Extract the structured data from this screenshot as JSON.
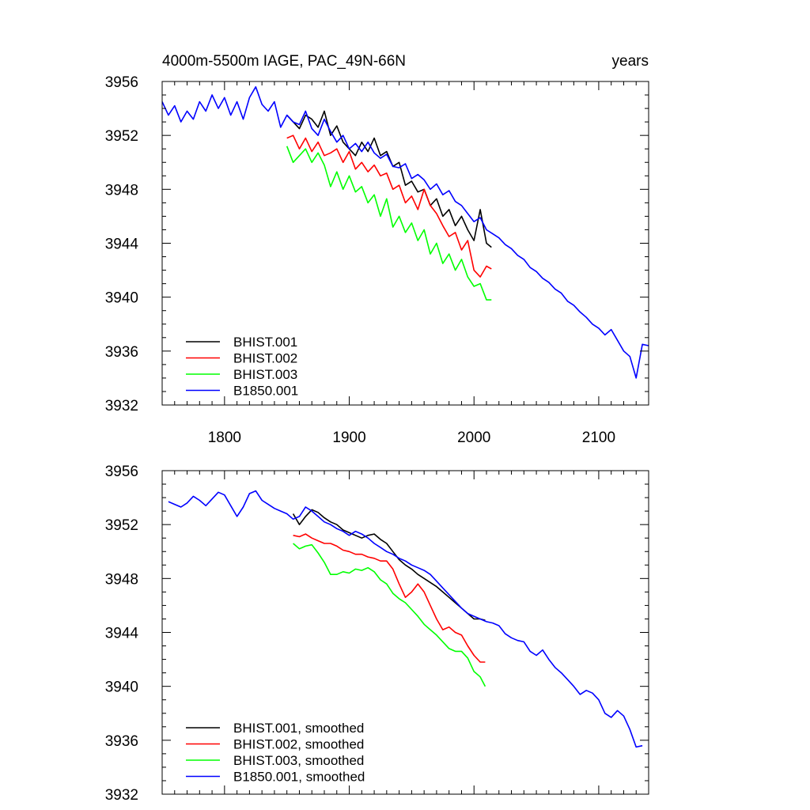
{
  "chart_data": [
    {
      "type": "line",
      "title": "4000m-5500m IAGE, PAC_49N-66N",
      "right_title": "years",
      "xlim": [
        1750,
        2140
      ],
      "ylim": [
        3932,
        3956
      ],
      "xticks": [
        1800,
        1900,
        2000,
        2100
      ],
      "xtick_labels": [
        "1800",
        "1900",
        "2000",
        "2100"
      ],
      "yticks": [
        3932,
        3936,
        3940,
        3944,
        3948,
        3952,
        3956
      ],
      "ytick_labels": [
        "3932",
        "3936",
        "3940",
        "3944",
        "3948",
        "3952",
        "3956"
      ],
      "legend_position": "bottom-left",
      "series": [
        {
          "name": "BHIST.001",
          "color": "#000000",
          "x": [
            1850,
            1855,
            1860,
            1865,
            1870,
            1875,
            1880,
            1885,
            1890,
            1895,
            1900,
            1905,
            1910,
            1915,
            1920,
            1925,
            1930,
            1935,
            1940,
            1945,
            1950,
            1955,
            1960,
            1965,
            1970,
            1975,
            1980,
            1985,
            1990,
            1995,
            2000,
            2005,
            2010,
            2014
          ],
          "y": [
            3953.5,
            3953.0,
            3952.5,
            3953.5,
            3953.2,
            3952.6,
            3953.8,
            3952.0,
            3952.7,
            3951.5,
            3951.0,
            3950.5,
            3951.5,
            3950.8,
            3951.8,
            3950.5,
            3950.8,
            3949.7,
            3950.0,
            3948.3,
            3948.6,
            3947.8,
            3948.0,
            3946.8,
            3947.3,
            3946.0,
            3946.5,
            3945.3,
            3946.0,
            3945.0,
            3944.2,
            3946.5,
            3944.0,
            3943.7
          ]
        },
        {
          "name": "BHIST.002",
          "color": "#ff0000",
          "x": [
            1850,
            1855,
            1860,
            1865,
            1870,
            1875,
            1880,
            1885,
            1890,
            1895,
            1900,
            1905,
            1910,
            1915,
            1920,
            1925,
            1930,
            1935,
            1940,
            1945,
            1950,
            1955,
            1960,
            1965,
            1970,
            1975,
            1980,
            1985,
            1990,
            1995,
            2000,
            2005,
            2010,
            2014
          ],
          "y": [
            3951.8,
            3952.0,
            3951.0,
            3951.8,
            3950.8,
            3951.5,
            3950.5,
            3950.7,
            3951.0,
            3950.0,
            3950.8,
            3949.5,
            3950.0,
            3949.3,
            3949.8,
            3949.0,
            3949.2,
            3948.0,
            3948.3,
            3947.0,
            3947.5,
            3946.5,
            3948.0,
            3946.8,
            3946.2,
            3945.3,
            3944.5,
            3944.8,
            3943.5,
            3944.2,
            3942.0,
            3941.5,
            3942.3,
            3942.1
          ]
        },
        {
          "name": "BHIST.003",
          "color": "#00ff00",
          "x": [
            1850,
            1855,
            1860,
            1865,
            1870,
            1875,
            1880,
            1885,
            1890,
            1895,
            1900,
            1905,
            1910,
            1915,
            1920,
            1925,
            1930,
            1935,
            1940,
            1945,
            1950,
            1955,
            1960,
            1965,
            1970,
            1975,
            1980,
            1985,
            1990,
            1995,
            2000,
            2005,
            2010,
            2014
          ],
          "y": [
            3951.2,
            3950.0,
            3950.5,
            3951.0,
            3950.0,
            3950.7,
            3949.8,
            3948.2,
            3949.3,
            3948.0,
            3949.0,
            3947.8,
            3948.2,
            3947.0,
            3947.6,
            3946.0,
            3947.3,
            3945.2,
            3946.0,
            3944.8,
            3945.5,
            3944.2,
            3945.0,
            3943.2,
            3944.0,
            3942.5,
            3943.2,
            3942.0,
            3942.8,
            3941.5,
            3940.8,
            3941.0,
            3939.8,
            3939.8
          ]
        },
        {
          "name": "B1850.001",
          "color": "#0000ff",
          "x": [
            1750,
            1755,
            1760,
            1765,
            1770,
            1775,
            1780,
            1785,
            1790,
            1795,
            1800,
            1805,
            1810,
            1815,
            1820,
            1825,
            1830,
            1835,
            1840,
            1845,
            1850,
            1855,
            1860,
            1865,
            1870,
            1875,
            1880,
            1885,
            1890,
            1895,
            1900,
            1905,
            1910,
            1915,
            1920,
            1925,
            1930,
            1935,
            1940,
            1945,
            1950,
            1955,
            1960,
            1965,
            1970,
            1975,
            1980,
            1985,
            1990,
            1995,
            2000,
            2005,
            2010,
            2015,
            2020,
            2025,
            2030,
            2035,
            2040,
            2045,
            2050,
            2055,
            2060,
            2065,
            2070,
            2075,
            2080,
            2085,
            2090,
            2095,
            2100,
            2105,
            2110,
            2115,
            2120,
            2125,
            2130,
            2135,
            2140
          ],
          "y": [
            3954.5,
            3953.5,
            3954.2,
            3953.0,
            3953.8,
            3953.2,
            3954.5,
            3953.8,
            3955.0,
            3954.0,
            3954.8,
            3953.5,
            3954.5,
            3953.2,
            3954.8,
            3955.6,
            3954.3,
            3953.8,
            3954.5,
            3952.6,
            3953.5,
            3953.0,
            3952.8,
            3953.8,
            3952.5,
            3952.0,
            3953.2,
            3952.3,
            3951.5,
            3952.0,
            3951.0,
            3951.4,
            3950.8,
            3951.5,
            3950.7,
            3950.3,
            3950.6,
            3949.7,
            3949.6,
            3949.9,
            3948.8,
            3949.1,
            3948.7,
            3948.0,
            3948.4,
            3947.6,
            3947.9,
            3947.1,
            3946.8,
            3946.2,
            3945.6,
            3945.9,
            3945.0,
            3944.7,
            3944.4,
            3943.9,
            3943.6,
            3943.1,
            3942.8,
            3942.2,
            3941.9,
            3941.4,
            3941.1,
            3940.6,
            3940.3,
            3939.7,
            3939.4,
            3938.9,
            3938.5,
            3938.0,
            3937.7,
            3937.2,
            3937.6,
            3936.8,
            3936.0,
            3935.6,
            3934.0,
            3936.5,
            3936.4
          ]
        }
      ]
    },
    {
      "type": "line",
      "title": "",
      "xlim": [
        1750,
        2140
      ],
      "ylim": [
        3932,
        3956
      ],
      "xticks": [
        1800,
        1900,
        2000,
        2100
      ],
      "yticks": [
        3932,
        3936,
        3940,
        3944,
        3948,
        3952,
        3956
      ],
      "ytick_labels": [
        "3932",
        "3936",
        "3940",
        "3944",
        "3948",
        "3952",
        "3956"
      ],
      "legend_position": "bottom-left",
      "series": [
        {
          "name": "BHIST.001, smoothed",
          "color": "#000000",
          "x": [
            1855,
            1860,
            1865,
            1870,
            1875,
            1880,
            1885,
            1890,
            1895,
            1900,
            1905,
            1910,
            1915,
            1920,
            1925,
            1930,
            1935,
            1940,
            1945,
            1950,
            1955,
            1960,
            1965,
            1970,
            1975,
            1980,
            1985,
            1990,
            1995,
            2000,
            2005,
            2009
          ],
          "y": [
            3952.8,
            3952.0,
            3952.6,
            3953.1,
            3952.9,
            3952.5,
            3952.2,
            3952.0,
            3951.6,
            3951.4,
            3951.2,
            3951.0,
            3951.2,
            3951.3,
            3950.9,
            3950.6,
            3950.0,
            3949.4,
            3949.0,
            3948.7,
            3948.3,
            3948.0,
            3947.7,
            3947.4,
            3947.0,
            3946.6,
            3946.2,
            3945.8,
            3945.4,
            3945.0,
            3945.0,
            3944.9
          ]
        },
        {
          "name": "BHIST.002, smoothed",
          "color": "#ff0000",
          "x": [
            1855,
            1860,
            1865,
            1870,
            1875,
            1880,
            1885,
            1890,
            1895,
            1900,
            1905,
            1910,
            1915,
            1920,
            1925,
            1930,
            1935,
            1940,
            1945,
            1950,
            1955,
            1960,
            1965,
            1970,
            1975,
            1980,
            1985,
            1990,
            1995,
            2000,
            2005,
            2009
          ],
          "y": [
            3951.2,
            3951.1,
            3951.3,
            3951.0,
            3950.8,
            3950.6,
            3950.6,
            3950.4,
            3950.1,
            3950.0,
            3949.8,
            3949.8,
            3949.6,
            3949.5,
            3949.3,
            3949.3,
            3948.7,
            3947.6,
            3946.6,
            3947.0,
            3947.6,
            3947.0,
            3946.0,
            3945.0,
            3944.2,
            3944.4,
            3944.0,
            3943.8,
            3943.0,
            3942.3,
            3941.8,
            3941.8
          ]
        },
        {
          "name": "BHIST.003, smoothed",
          "color": "#00ff00",
          "x": [
            1855,
            1860,
            1865,
            1870,
            1875,
            1880,
            1885,
            1890,
            1895,
            1900,
            1905,
            1910,
            1915,
            1920,
            1925,
            1930,
            1935,
            1940,
            1945,
            1950,
            1955,
            1960,
            1965,
            1970,
            1975,
            1980,
            1985,
            1990,
            1995,
            2000,
            2005,
            2009
          ],
          "y": [
            3950.6,
            3950.2,
            3950.4,
            3950.5,
            3949.9,
            3949.2,
            3948.3,
            3948.3,
            3948.5,
            3948.4,
            3948.7,
            3948.6,
            3948.8,
            3948.5,
            3947.9,
            3947.6,
            3946.9,
            3946.5,
            3946.2,
            3945.7,
            3945.2,
            3944.6,
            3944.2,
            3943.8,
            3943.3,
            3942.8,
            3942.6,
            3942.6,
            3942.1,
            3941.1,
            3940.7,
            3940.0
          ]
        },
        {
          "name": "B1850.001, smoothed",
          "color": "#0000ff",
          "x": [
            1755,
            1760,
            1765,
            1770,
            1775,
            1780,
            1785,
            1790,
            1795,
            1800,
            1805,
            1810,
            1815,
            1820,
            1825,
            1830,
            1835,
            1840,
            1845,
            1850,
            1855,
            1860,
            1865,
            1870,
            1875,
            1880,
            1885,
            1890,
            1895,
            1900,
            1905,
            1910,
            1915,
            1920,
            1925,
            1930,
            1935,
            1940,
            1945,
            1950,
            1955,
            1960,
            1965,
            1970,
            1975,
            1980,
            1985,
            1990,
            1995,
            2000,
            2005,
            2010,
            2015,
            2020,
            2025,
            2030,
            2035,
            2040,
            2045,
            2050,
            2055,
            2060,
            2065,
            2070,
            2075,
            2080,
            2085,
            2090,
            2095,
            2100,
            2105,
            2110,
            2115,
            2120,
            2125,
            2130,
            2135
          ],
          "y": [
            3953.7,
            3953.5,
            3953.3,
            3953.6,
            3954.1,
            3953.8,
            3953.4,
            3953.9,
            3954.4,
            3954.2,
            3953.4,
            3952.6,
            3953.3,
            3954.3,
            3954.5,
            3953.8,
            3953.5,
            3953.2,
            3953.0,
            3952.8,
            3952.4,
            3952.6,
            3953.3,
            3953.0,
            3952.6,
            3952.2,
            3952.0,
            3951.7,
            3951.5,
            3951.2,
            3951.5,
            3951.3,
            3951.0,
            3950.6,
            3950.3,
            3950.0,
            3949.8,
            3949.5,
            3949.3,
            3949.0,
            3948.8,
            3948.6,
            3948.3,
            3947.8,
            3947.3,
            3946.8,
            3946.3,
            3945.8,
            3945.4,
            3945.2,
            3945.0,
            3944.8,
            3944.7,
            3944.5,
            3943.9,
            3943.6,
            3943.4,
            3943.3,
            3942.6,
            3942.3,
            3942.7,
            3942.0,
            3941.4,
            3941.0,
            3940.5,
            3940.0,
            3939.4,
            3939.7,
            3939.5,
            3939.0,
            3938.0,
            3937.7,
            3938.2,
            3937.8,
            3936.8,
            3935.5,
            3935.6
          ]
        }
      ]
    }
  ]
}
